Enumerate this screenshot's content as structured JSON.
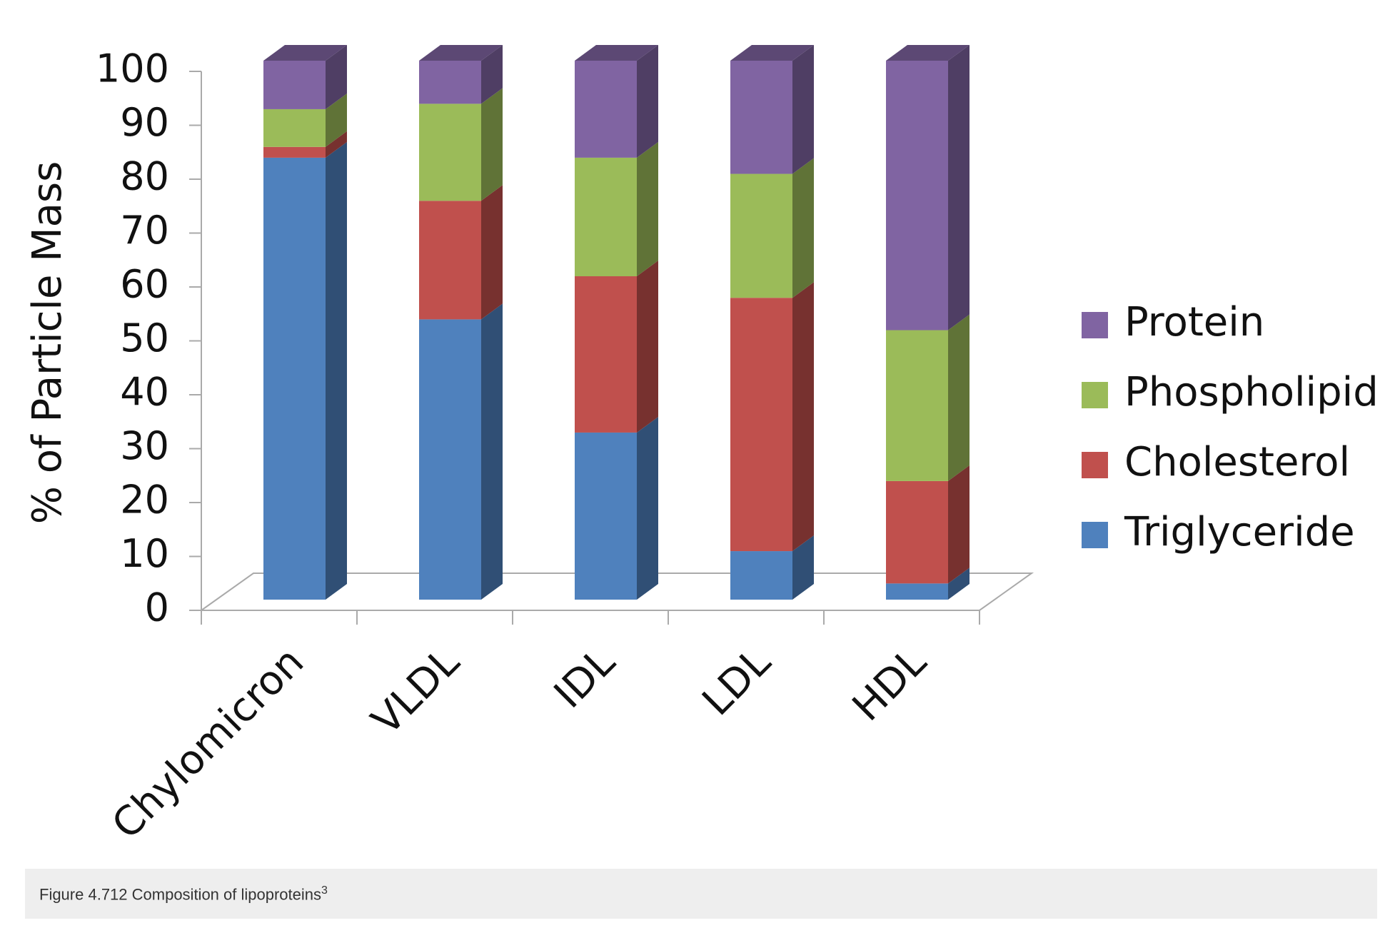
{
  "chart_data": {
    "type": "bar3d_stacked",
    "y_label": "% of Particle Mass",
    "categories": [
      "Chylomicron",
      "VLDL",
      "IDL",
      "LDL",
      "HDL"
    ],
    "series": [
      {
        "name": "Triglyceride",
        "color": "#4f81bd",
        "values": [
          82,
          52,
          31,
          9,
          3
        ]
      },
      {
        "name": "Cholesterol",
        "color": "#c0504d",
        "values": [
          2,
          22,
          29,
          47,
          19
        ]
      },
      {
        "name": "Phospholipid",
        "color": "#9bbb59",
        "values": [
          7,
          18,
          22,
          23,
          28
        ]
      },
      {
        "name": "Protein",
        "color": "#8064a2",
        "values": [
          9,
          8,
          18,
          21,
          50
        ]
      }
    ],
    "ylim": [
      0,
      100
    ],
    "yticks": [
      0,
      10,
      20,
      30,
      40,
      50,
      60,
      70,
      80,
      90,
      100
    ],
    "legend": "right"
  },
  "caption": {
    "text": "Figure 4.712 Composition of lipoproteins",
    "superscript": "3"
  }
}
